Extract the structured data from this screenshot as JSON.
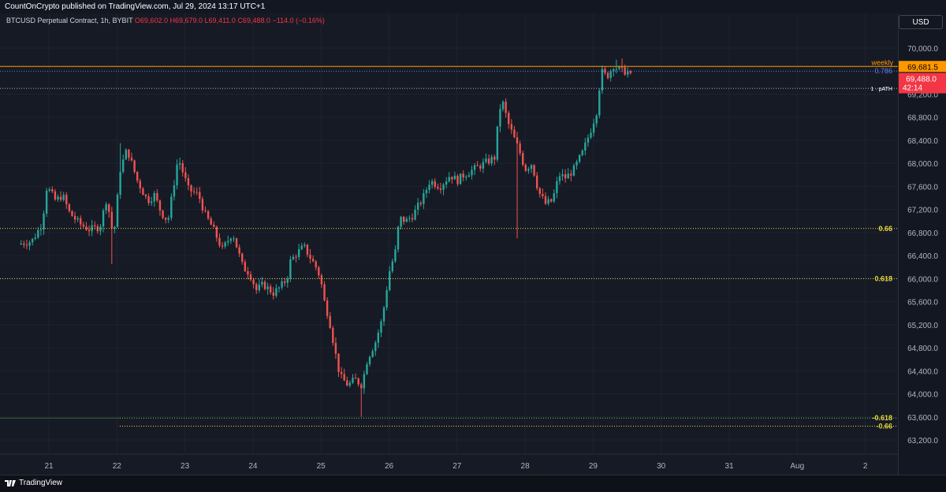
{
  "publisher": "CountOnCrypto published on TradingView.com, Jul 29, 2024 13:17 UTC+1",
  "legend": {
    "symbol": "BTCUSD Perpetual Contract, 1h, BYBIT",
    "open": "O69,602.0",
    "high": "H69,679.0",
    "low": "L69,411.0",
    "close": "C69,488.0",
    "change": "−114.0 (−0.16%)"
  },
  "currency": "USD",
  "brand": "TradingView",
  "colors": {
    "up": "#26a69a",
    "down": "#ef5350",
    "weekly": "#ff9800",
    "fib": "#e8d83a",
    "blue_level": "#5b7ff5",
    "price_tag": "#f23645"
  },
  "chart_data": {
    "type": "candlestick",
    "timeframe": "1h",
    "x_ticks": [
      "21",
      "22",
      "23",
      "24",
      "25",
      "26",
      "27",
      "28",
      "29",
      "30",
      "31",
      "Aug",
      "2"
    ],
    "y_ticks": [
      "63,200.0",
      "63,600.0",
      "64,000.0",
      "64,400.0",
      "64,800.0",
      "65,200.0",
      "65,600.0",
      "66,000.0",
      "66,400.0",
      "66,800.0",
      "67,200.0",
      "67,600.0",
      "68,000.0",
      "68,400.0",
      "68,800.0",
      "69,200.0",
      "70,000.0"
    ],
    "ylim": [
      63000,
      70300
    ],
    "price_path": [
      {
        "day": 20.55,
        "price": 66600
      },
      {
        "day": 20.75,
        "price": 66650
      },
      {
        "day": 20.9,
        "price": 66950
      },
      {
        "day": 20.97,
        "price": 67600
      },
      {
        "day": 21.1,
        "price": 67350
      },
      {
        "day": 21.2,
        "price": 67450
      },
      {
        "day": 21.3,
        "price": 67150
      },
      {
        "day": 21.45,
        "price": 66950
      },
      {
        "day": 21.6,
        "price": 66850
      },
      {
        "day": 21.75,
        "price": 66900
      },
      {
        "day": 21.85,
        "price": 67400
      },
      {
        "day": 21.95,
        "price": 66700
      },
      {
        "day": 22.05,
        "price": 67900
      },
      {
        "day": 22.15,
        "price": 68250
      },
      {
        "day": 22.3,
        "price": 67700
      },
      {
        "day": 22.45,
        "price": 67350
      },
      {
        "day": 22.55,
        "price": 67450
      },
      {
        "day": 22.65,
        "price": 67150
      },
      {
        "day": 22.75,
        "price": 67000
      },
      {
        "day": 22.9,
        "price": 68100
      },
      {
        "day": 23.05,
        "price": 67550
      },
      {
        "day": 23.2,
        "price": 67450
      },
      {
        "day": 23.3,
        "price": 67100
      },
      {
        "day": 23.4,
        "price": 66900
      },
      {
        "day": 23.55,
        "price": 66500
      },
      {
        "day": 23.7,
        "price": 66800
      },
      {
        "day": 23.85,
        "price": 66200
      },
      {
        "day": 23.95,
        "price": 66100
      },
      {
        "day": 24.05,
        "price": 65800
      },
      {
        "day": 24.15,
        "price": 65900
      },
      {
        "day": 24.3,
        "price": 65750
      },
      {
        "day": 24.4,
        "price": 65850
      },
      {
        "day": 24.5,
        "price": 66000
      },
      {
        "day": 24.55,
        "price": 66300
      },
      {
        "day": 24.65,
        "price": 66450
      },
      {
        "day": 24.75,
        "price": 66550
      },
      {
        "day": 24.85,
        "price": 66350
      },
      {
        "day": 24.95,
        "price": 66150
      },
      {
        "day": 25.0,
        "price": 65950
      },
      {
        "day": 25.05,
        "price": 65600
      },
      {
        "day": 25.12,
        "price": 65300
      },
      {
        "day": 25.22,
        "price": 64650
      },
      {
        "day": 25.28,
        "price": 64300
      },
      {
        "day": 25.4,
        "price": 64150
      },
      {
        "day": 25.5,
        "price": 64250
      },
      {
        "day": 25.6,
        "price": 64150
      },
      {
        "day": 25.68,
        "price": 64600
      },
      {
        "day": 25.8,
        "price": 64900
      },
      {
        "day": 25.9,
        "price": 65300
      },
      {
        "day": 26.0,
        "price": 66100
      },
      {
        "day": 26.1,
        "price": 66500
      },
      {
        "day": 26.15,
        "price": 67050
      },
      {
        "day": 26.25,
        "price": 67000
      },
      {
        "day": 26.35,
        "price": 67100
      },
      {
        "day": 26.5,
        "price": 67400
      },
      {
        "day": 26.6,
        "price": 67700
      },
      {
        "day": 26.75,
        "price": 67600
      },
      {
        "day": 26.9,
        "price": 67800
      },
      {
        "day": 27.0,
        "price": 67700
      },
      {
        "day": 27.1,
        "price": 67800
      },
      {
        "day": 27.25,
        "price": 67900
      },
      {
        "day": 27.4,
        "price": 68000
      },
      {
        "day": 27.55,
        "price": 68100
      },
      {
        "day": 27.62,
        "price": 68900
      },
      {
        "day": 27.66,
        "price": 69100
      },
      {
        "day": 27.75,
        "price": 68700
      },
      {
        "day": 27.85,
        "price": 68400
      },
      {
        "day": 27.92,
        "price": 68200
      },
      {
        "day": 28.0,
        "price": 67900
      },
      {
        "day": 28.1,
        "price": 68000
      },
      {
        "day": 28.2,
        "price": 67500
      },
      {
        "day": 28.3,
        "price": 67300
      },
      {
        "day": 28.4,
        "price": 67350
      },
      {
        "day": 28.5,
        "price": 67800
      },
      {
        "day": 28.6,
        "price": 67750
      },
      {
        "day": 28.72,
        "price": 67900
      },
      {
        "day": 28.85,
        "price": 68200
      },
      {
        "day": 28.97,
        "price": 68600
      },
      {
        "day": 29.05,
        "price": 68900
      },
      {
        "day": 29.12,
        "price": 69600
      },
      {
        "day": 29.2,
        "price": 69500
      },
      {
        "day": 29.3,
        "price": 69700
      },
      {
        "day": 29.4,
        "price": 69600
      },
      {
        "day": 29.5,
        "price": 69600
      },
      {
        "day": 29.56,
        "price": 69488
      }
    ],
    "levels": [
      {
        "name": "weekly",
        "price": 69681.5,
        "tag": "69,681.5"
      },
      {
        "name": "0.786",
        "price": 69600
      },
      {
        "name": "1 · pATH",
        "price": 69300
      },
      {
        "name": "0.66",
        "price": 66870
      },
      {
        "name": "0.618",
        "price": 66000
      },
      {
        "name": "-0.618",
        "price": 63580
      },
      {
        "name": "-0.66",
        "price": 63440
      }
    ],
    "current_price": {
      "value": "69,488.0",
      "countdown": "42:14"
    }
  }
}
